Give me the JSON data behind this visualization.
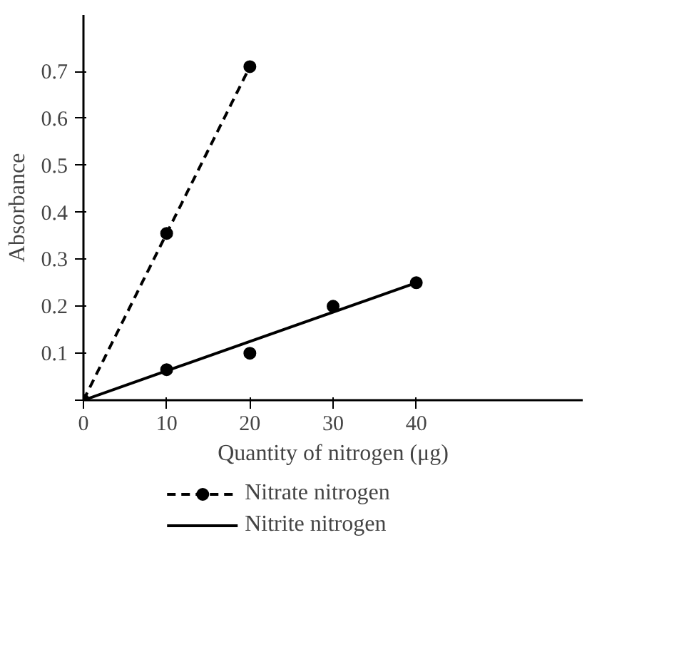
{
  "chart_data": {
    "type": "line",
    "xlabel": "Quantity of nitrogen (μg)",
    "ylabel": "Absorbance",
    "xlim": [
      0,
      60
    ],
    "ylim": [
      0,
      0.82
    ],
    "xticks": [
      0,
      10,
      20,
      30,
      40
    ],
    "yticks": [
      {
        "value": 0,
        "label": null
      },
      0.1,
      0.2,
      0.3,
      0.4,
      0.5,
      0.6,
      0.7
    ],
    "grid": false,
    "legend": "bottom",
    "marker": "circle",
    "series": [
      {
        "name": "Nitrate nitrogen",
        "line_style": "dashed",
        "color": "#000000",
        "x": [
          0,
          10,
          20
        ],
        "values": [
          0,
          0.355,
          0.71
        ]
      },
      {
        "type": "scatter",
        "color": "#000000",
        "x": [
          10,
          20,
          30,
          40
        ],
        "values": [
          0.065,
          0.1,
          0.2,
          0.25
        ]
      },
      {
        "name": "Nitrite nitrogen",
        "type": "line",
        "line_style": "solid",
        "marker": "none",
        "color": "#000000",
        "x": [
          0,
          40
        ],
        "values": [
          0,
          0.25
        ]
      }
    ]
  }
}
